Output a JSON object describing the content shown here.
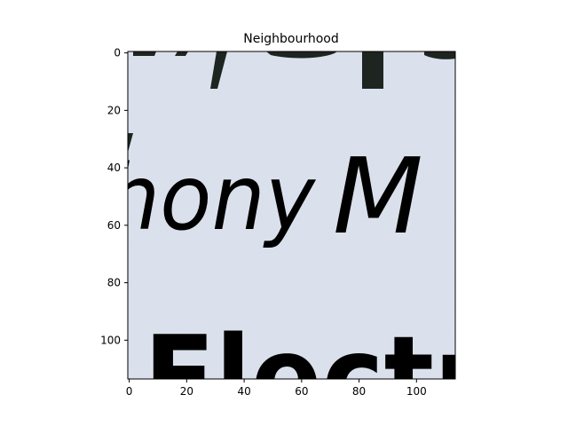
{
  "figure": {
    "title": "Neighbourhood"
  },
  "image": {
    "description_words": [
      "ny",
      "Op",
      "hony",
      "M",
      "Electr"
    ],
    "colors": {
      "background": "#dde3ee",
      "ink": "#1e2420"
    }
  },
  "axes": {
    "x_ticks": [
      0,
      20,
      40,
      60,
      80,
      100
    ],
    "y_ticks": [
      0,
      20,
      40,
      60,
      80,
      100
    ],
    "x_range": [
      -0.5,
      113.5
    ],
    "y_range": [
      113.5,
      -0.5
    ]
  }
}
